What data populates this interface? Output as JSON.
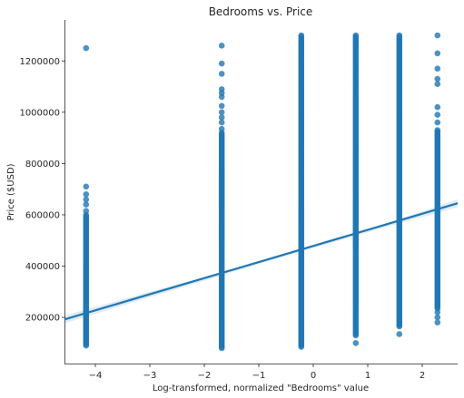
{
  "chart_data": {
    "type": "scatter",
    "title": "Bedrooms vs. Price",
    "xlabel": "Log-transformed, normalized \"Bedrooms\" value",
    "ylabel": "Price ($USD)",
    "xlim": [
      -4.55,
      2.65
    ],
    "ylim": [
      20000,
      1360000
    ],
    "xticks": [
      -4,
      -3,
      -2,
      -1,
      0,
      1,
      2
    ],
    "xtick_labels": [
      "−4",
      "−3",
      "−2",
      "−1",
      "0",
      "1",
      "2"
    ],
    "yticks": [
      200000,
      400000,
      600000,
      800000,
      1000000,
      1200000
    ],
    "ytick_labels": [
      "200000",
      "400000",
      "600000",
      "800000",
      "1000000",
      "1200000"
    ],
    "grid": false,
    "point_color": "#1f77b4",
    "line_color": "#1f77b4",
    "columns": [
      {
        "x": -4.17,
        "dense_range": [
          90000,
          600000
        ],
        "outliers": [
          615000,
          640000,
          660000,
          680000,
          710000,
          1250000
        ]
      },
      {
        "x": -1.68,
        "dense_range": [
          80000,
          920000
        ],
        "outliers": [
          935000,
          960000,
          980000,
          1000000,
          1025000,
          1060000,
          1075000,
          1090000,
          1150000,
          1190000,
          1260000
        ]
      },
      {
        "x": -0.22,
        "dense_range": [
          85000,
          1300000
        ],
        "outliers": []
      },
      {
        "x": 0.78,
        "dense_range": [
          130000,
          1300000
        ],
        "outliers": [
          100000
        ]
      },
      {
        "x": 1.58,
        "dense_range": [
          165000,
          1300000
        ],
        "outliers": [
          135000
        ]
      },
      {
        "x": 2.28,
        "dense_range": [
          235000,
          930000
        ],
        "outliers": [
          180000,
          200000,
          220000,
          960000,
          990000,
          1020000,
          1110000,
          1130000,
          1170000,
          1230000,
          1300000
        ]
      }
    ],
    "regression": {
      "x": [
        -4.55,
        2.65
      ],
      "y": [
        193000,
        645000
      ]
    },
    "confidence_band": {
      "x": [
        -4.55,
        -2.0,
        -0.5,
        1.0,
        2.65
      ],
      "lower": [
        178000,
        343000,
        440000,
        532000,
        630000
      ],
      "upper": [
        208000,
        358000,
        450000,
        542000,
        660000
      ]
    }
  }
}
